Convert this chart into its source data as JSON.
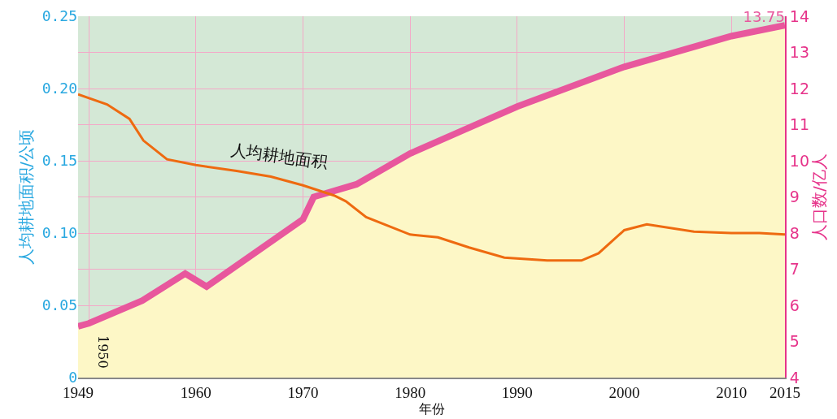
{
  "chart_data": {
    "type": "line",
    "xlabel": "年份",
    "ylabel": "人均耕地面积/公顷",
    "y2label": "人口数/亿人",
    "xlim": [
      1949,
      2015
    ],
    "xticks": [
      1949,
      {
        "value": 1950,
        "label": null
      },
      1960,
      1970,
      1980,
      1990,
      2000,
      2010,
      2015
    ],
    "ylim": [
      0,
      0.25
    ],
    "yticks": [
      0,
      {
        "value": 0.05,
        "label": "0.05"
      },
      {
        "value": 0.1,
        "label": "0.10"
      },
      {
        "value": 0.15,
        "label": "0.15"
      },
      {
        "value": 0.2,
        "label": "0.20"
      },
      {
        "value": 0.25,
        "label": "0.25"
      }
    ],
    "y2lim": [
      4,
      14
    ],
    "y2ticks": [
      4,
      5,
      6,
      7,
      8,
      9,
      10,
      11,
      12,
      13,
      14
    ],
    "grid": true,
    "legend": false,
    "annotations": [
      "1950"
    ],
    "series": [
      {
        "type": "area",
        "axis": "y2",
        "color": "#fdf7c6",
        "x": [
          1949,
          1950,
          1955,
          1959,
          1961,
          1970,
          1971,
          1975,
          1980,
          1985,
          1990,
          2000,
          2010,
          2015
        ],
        "values": [
          5.42,
          5.5,
          6.13,
          6.88,
          6.52,
          8.38,
          9,
          9.35,
          10.2,
          10.85,
          11.5,
          12.6,
          13.45,
          13.75
        ]
      },
      {
        "axis": "y2",
        "color": "#e8579d",
        "x": [
          1949,
          1950,
          1955,
          1959,
          1961,
          1970,
          1971,
          1975,
          1980,
          1985,
          1990,
          2000,
          2010,
          2015
        ],
        "values": [
          5.42,
          5.5,
          6.13,
          6.88,
          6.52,
          8.38,
          9,
          9.35,
          10.2,
          10.85,
          11.5,
          12.6,
          13.45,
          13.75
        ],
        "value_labels": [
          null,
          null,
          null,
          null,
          null,
          null,
          null,
          null,
          null,
          null,
          null,
          null,
          null,
          "13.75"
        ]
      },
      {
        "name": "人均耕地面积",
        "color": "#ee6a10",
        "x": [
          1949,
          1951.7,
          1953.8,
          1955.1,
          1957.3,
          1960,
          1963.8,
          1967,
          1970,
          1972.9,
          1974,
          1975.9,
          1980,
          1982.6,
          1985.5,
          1988.8,
          1992.8,
          1996,
          1997.6,
          2000,
          2002.1,
          2006.5,
          2010,
          2012.6,
          2015
        ],
        "values": [
          0.196,
          0.189,
          0.179,
          0.164,
          0.151,
          0.147,
          0.143,
          0.139,
          0.133,
          0.126,
          0.122,
          0.111,
          0.099,
          0.097,
          0.09,
          0.083,
          0.081,
          0.081,
          0.086,
          0.102,
          0.106,
          0.101,
          0.1,
          0.1,
          0.099
        ]
      }
    ]
  }
}
